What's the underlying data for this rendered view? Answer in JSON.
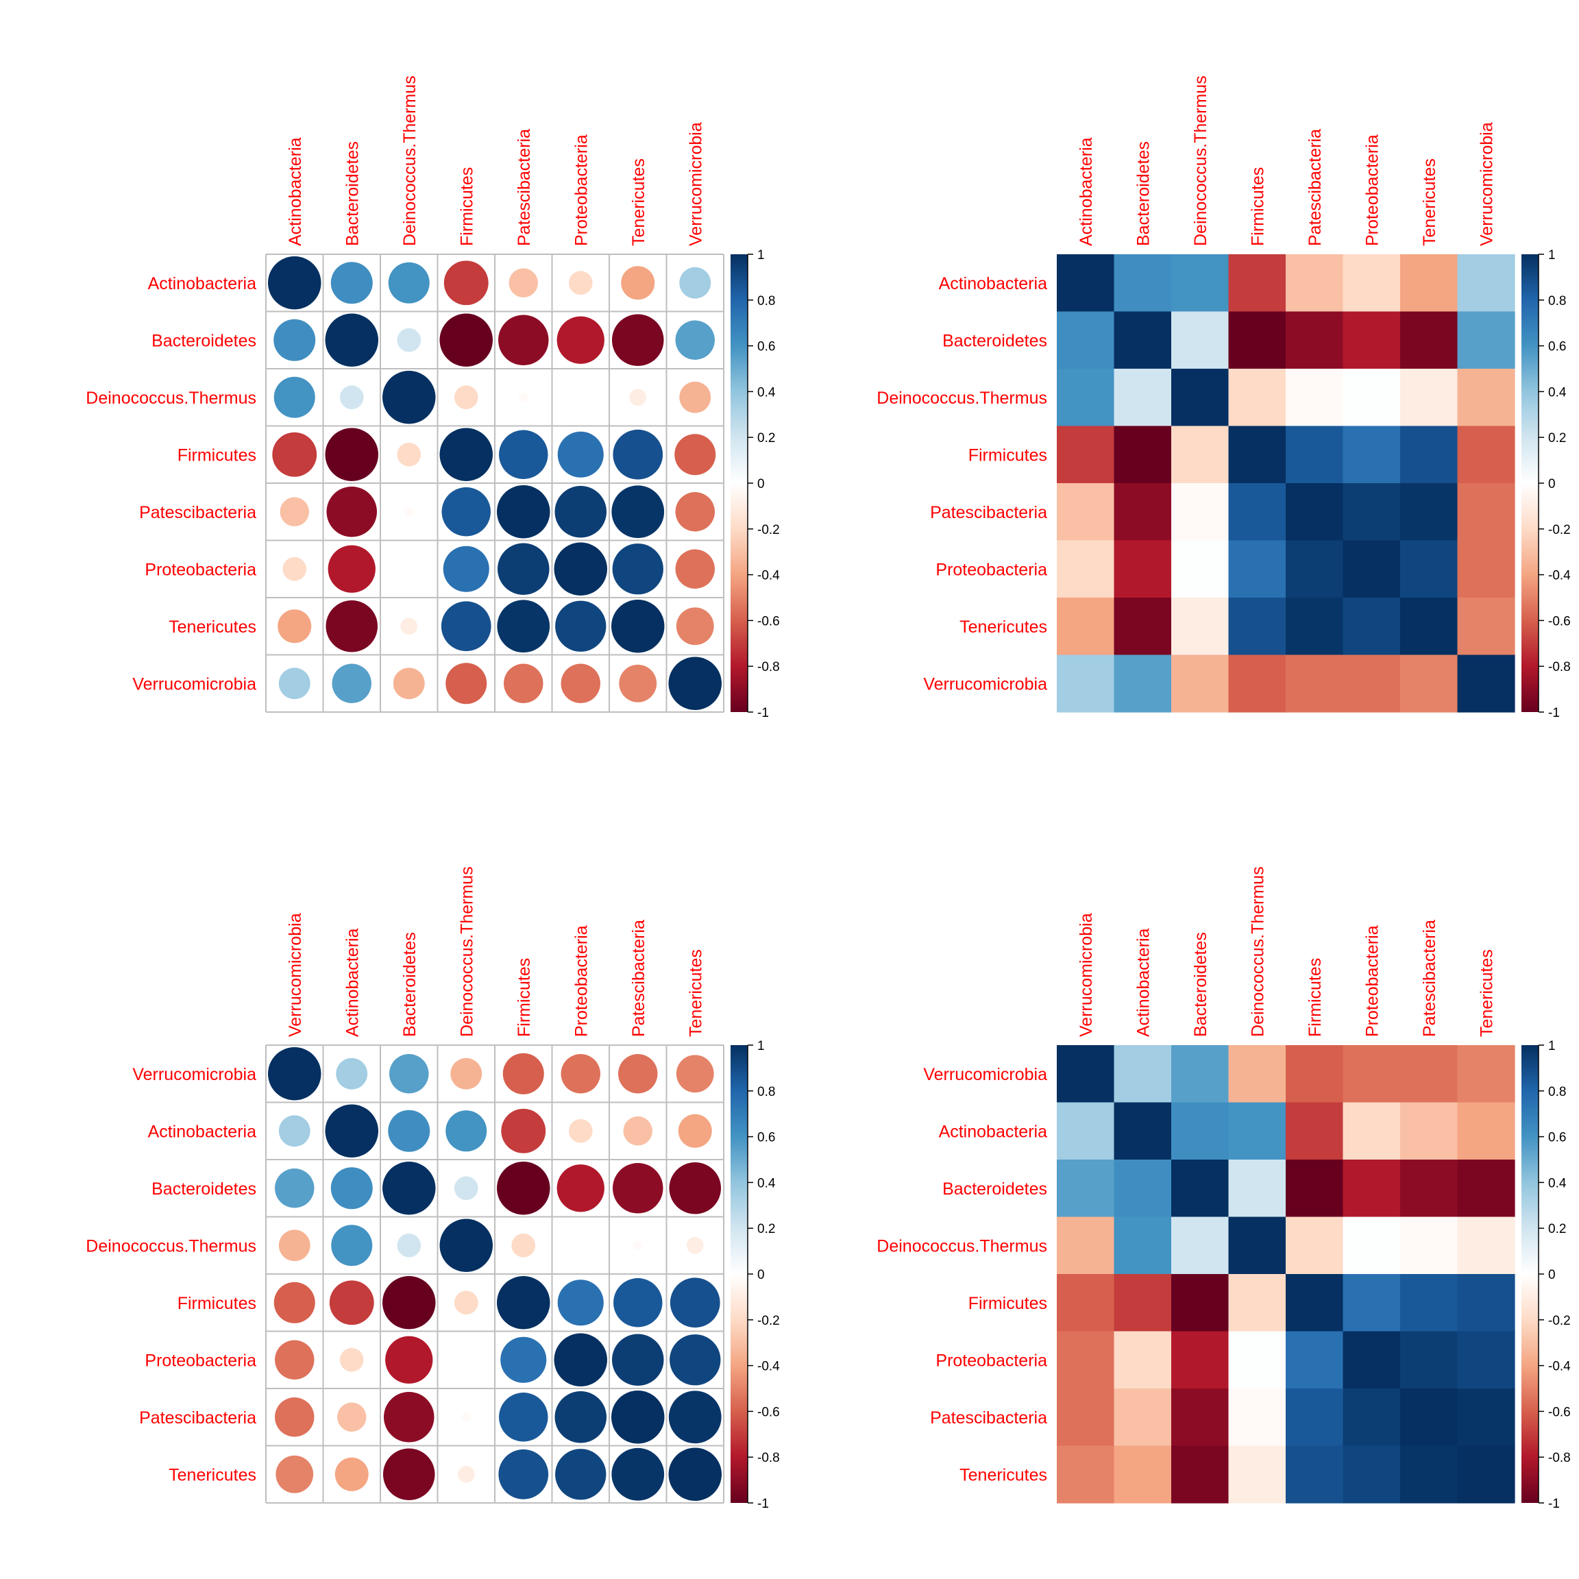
{
  "colors": {
    "label": "#FF0000",
    "grid": "#BEBEBE",
    "scale": [
      "#67001F",
      "#B2182B",
      "#D6604D",
      "#F4A582",
      "#FDDBC7",
      "#FFFFFF",
      "#D1E5F0",
      "#92C5DE",
      "#4393C3",
      "#2166AC",
      "#053061"
    ]
  },
  "colorbar_ticks": [
    "1",
    "0.8",
    "0.6",
    "0.4",
    "0.2",
    "0",
    "-0.2",
    "-0.4",
    "-0.6",
    "-0.8",
    "-1"
  ],
  "chart_data": [
    {
      "type": "heatmap",
      "method": "circle",
      "labels": [
        "Actinobacteria",
        "Bacteroidetes",
        "Deinococcus.Thermus",
        "Firmicutes",
        "Patescibacteria",
        "Proteobacteria",
        "Tenericutes",
        "Verrucomicrobia"
      ],
      "matrix": [
        [
          1.0,
          0.62,
          0.6,
          -0.7,
          -0.3,
          -0.2,
          -0.4,
          0.35
        ],
        [
          0.62,
          1.0,
          0.2,
          -1.0,
          -0.9,
          -0.8,
          -0.95,
          0.55
        ],
        [
          0.6,
          0.2,
          1.0,
          -0.2,
          -0.03,
          0.01,
          -0.1,
          -0.35
        ],
        [
          -0.7,
          -1.0,
          -0.2,
          1.0,
          0.85,
          0.75,
          0.88,
          -0.6
        ],
        [
          -0.3,
          -0.9,
          -0.03,
          0.85,
          1.0,
          0.95,
          0.98,
          -0.55
        ],
        [
          -0.2,
          -0.8,
          0.01,
          0.75,
          0.95,
          1.0,
          0.92,
          -0.55
        ],
        [
          -0.4,
          -0.95,
          -0.1,
          0.88,
          0.98,
          0.92,
          1.0,
          -0.5
        ],
        [
          0.35,
          0.55,
          -0.35,
          -0.6,
          -0.55,
          -0.55,
          -0.5,
          1.0
        ]
      ]
    },
    {
      "type": "heatmap",
      "method": "color",
      "labels": [
        "Actinobacteria",
        "Bacteroidetes",
        "Deinococcus.Thermus",
        "Firmicutes",
        "Patescibacteria",
        "Proteobacteria",
        "Tenericutes",
        "Verrucomicrobia"
      ],
      "matrix": [
        [
          1.0,
          0.62,
          0.6,
          -0.7,
          -0.3,
          -0.2,
          -0.4,
          0.35
        ],
        [
          0.62,
          1.0,
          0.2,
          -1.0,
          -0.9,
          -0.8,
          -0.95,
          0.55
        ],
        [
          0.6,
          0.2,
          1.0,
          -0.2,
          -0.03,
          0.01,
          -0.1,
          -0.35
        ],
        [
          -0.7,
          -1.0,
          -0.2,
          1.0,
          0.85,
          0.75,
          0.88,
          -0.6
        ],
        [
          -0.3,
          -0.9,
          -0.03,
          0.85,
          1.0,
          0.95,
          0.98,
          -0.55
        ],
        [
          -0.2,
          -0.8,
          0.01,
          0.75,
          0.95,
          1.0,
          0.92,
          -0.55
        ],
        [
          -0.4,
          -0.95,
          -0.1,
          0.88,
          0.98,
          0.92,
          1.0,
          -0.5
        ],
        [
          0.35,
          0.55,
          -0.35,
          -0.6,
          -0.55,
          -0.55,
          -0.5,
          1.0
        ]
      ]
    },
    {
      "type": "heatmap",
      "method": "circle",
      "labels": [
        "Verrucomicrobia",
        "Actinobacteria",
        "Bacteroidetes",
        "Deinococcus.Thermus",
        "Firmicutes",
        "Proteobacteria",
        "Patescibacteria",
        "Tenericutes"
      ],
      "matrix": [
        [
          1.0,
          0.35,
          0.55,
          -0.35,
          -0.6,
          -0.55,
          -0.55,
          -0.5
        ],
        [
          0.35,
          1.0,
          0.62,
          0.6,
          -0.7,
          -0.2,
          -0.3,
          -0.4
        ],
        [
          0.55,
          0.62,
          1.0,
          0.2,
          -1.0,
          -0.8,
          -0.9,
          -0.95
        ],
        [
          -0.35,
          0.6,
          0.2,
          1.0,
          -0.2,
          0.01,
          -0.03,
          -0.1
        ],
        [
          -0.6,
          -0.7,
          -1.0,
          -0.2,
          1.0,
          0.75,
          0.85,
          0.88
        ],
        [
          -0.55,
          -0.2,
          -0.8,
          0.01,
          0.75,
          1.0,
          0.95,
          0.92
        ],
        [
          -0.55,
          -0.3,
          -0.9,
          -0.03,
          0.85,
          0.95,
          1.0,
          0.98
        ],
        [
          -0.5,
          -0.4,
          -0.95,
          -0.1,
          0.88,
          0.92,
          0.98,
          1.0
        ]
      ]
    },
    {
      "type": "heatmap",
      "method": "color",
      "labels": [
        "Verrucomicrobia",
        "Actinobacteria",
        "Bacteroidetes",
        "Deinococcus.Thermus",
        "Firmicutes",
        "Proteobacteria",
        "Patescibacteria",
        "Tenericutes"
      ],
      "matrix": [
        [
          1.0,
          0.35,
          0.55,
          -0.35,
          -0.6,
          -0.55,
          -0.55,
          -0.5
        ],
        [
          0.35,
          1.0,
          0.62,
          0.6,
          -0.7,
          -0.2,
          -0.3,
          -0.4
        ],
        [
          0.55,
          0.62,
          1.0,
          0.2,
          -1.0,
          -0.8,
          -0.9,
          -0.95
        ],
        [
          -0.35,
          0.6,
          0.2,
          1.0,
          -0.2,
          0.01,
          -0.03,
          -0.1
        ],
        [
          -0.6,
          -0.7,
          -1.0,
          -0.2,
          1.0,
          0.75,
          0.85,
          0.88
        ],
        [
          -0.55,
          -0.2,
          -0.8,
          0.01,
          0.75,
          1.0,
          0.95,
          0.92
        ],
        [
          -0.55,
          -0.3,
          -0.9,
          -0.03,
          0.85,
          0.95,
          1.0,
          0.98
        ],
        [
          -0.5,
          -0.4,
          -0.95,
          -0.1,
          0.88,
          0.92,
          0.98,
          1.0
        ]
      ]
    }
  ]
}
